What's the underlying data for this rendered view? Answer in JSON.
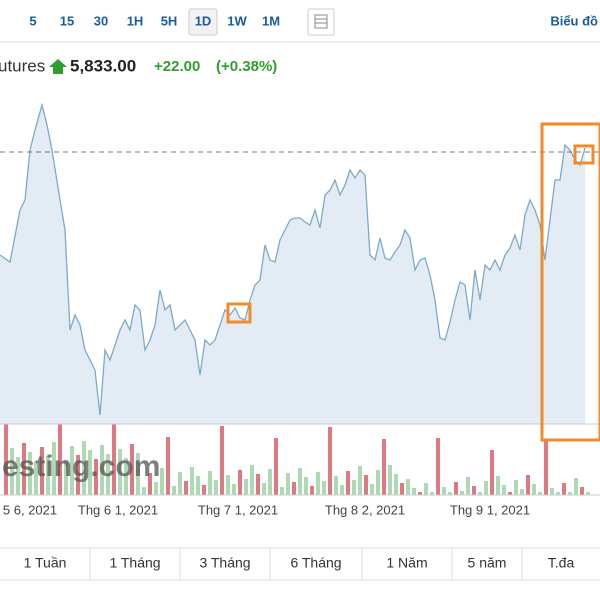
{
  "toolbar": {
    "intervals": [
      "5",
      "15",
      "30",
      "1H",
      "5H",
      "1D",
      "1W",
      "1M"
    ],
    "selected": "1D",
    "chart_link": "Biểu đồ"
  },
  "quote": {
    "name": "utures",
    "price": "5,833.00",
    "change": "+22.00",
    "change_percent": "(+0.38%)"
  },
  "chart": {
    "watermark": "esting.com",
    "x_labels": [
      "5 6, 2021",
      "Thg 6 1, 2021",
      "Thg 7 1, 2021",
      "Thg 8 2, 2021",
      "Thg 9 1, 2021"
    ]
  },
  "ranges": [
    "1 Tuần",
    "1 Tháng",
    "3 Tháng",
    "6 Tháng",
    "1 Năm",
    "5 năm",
    "T.đa"
  ]
}
